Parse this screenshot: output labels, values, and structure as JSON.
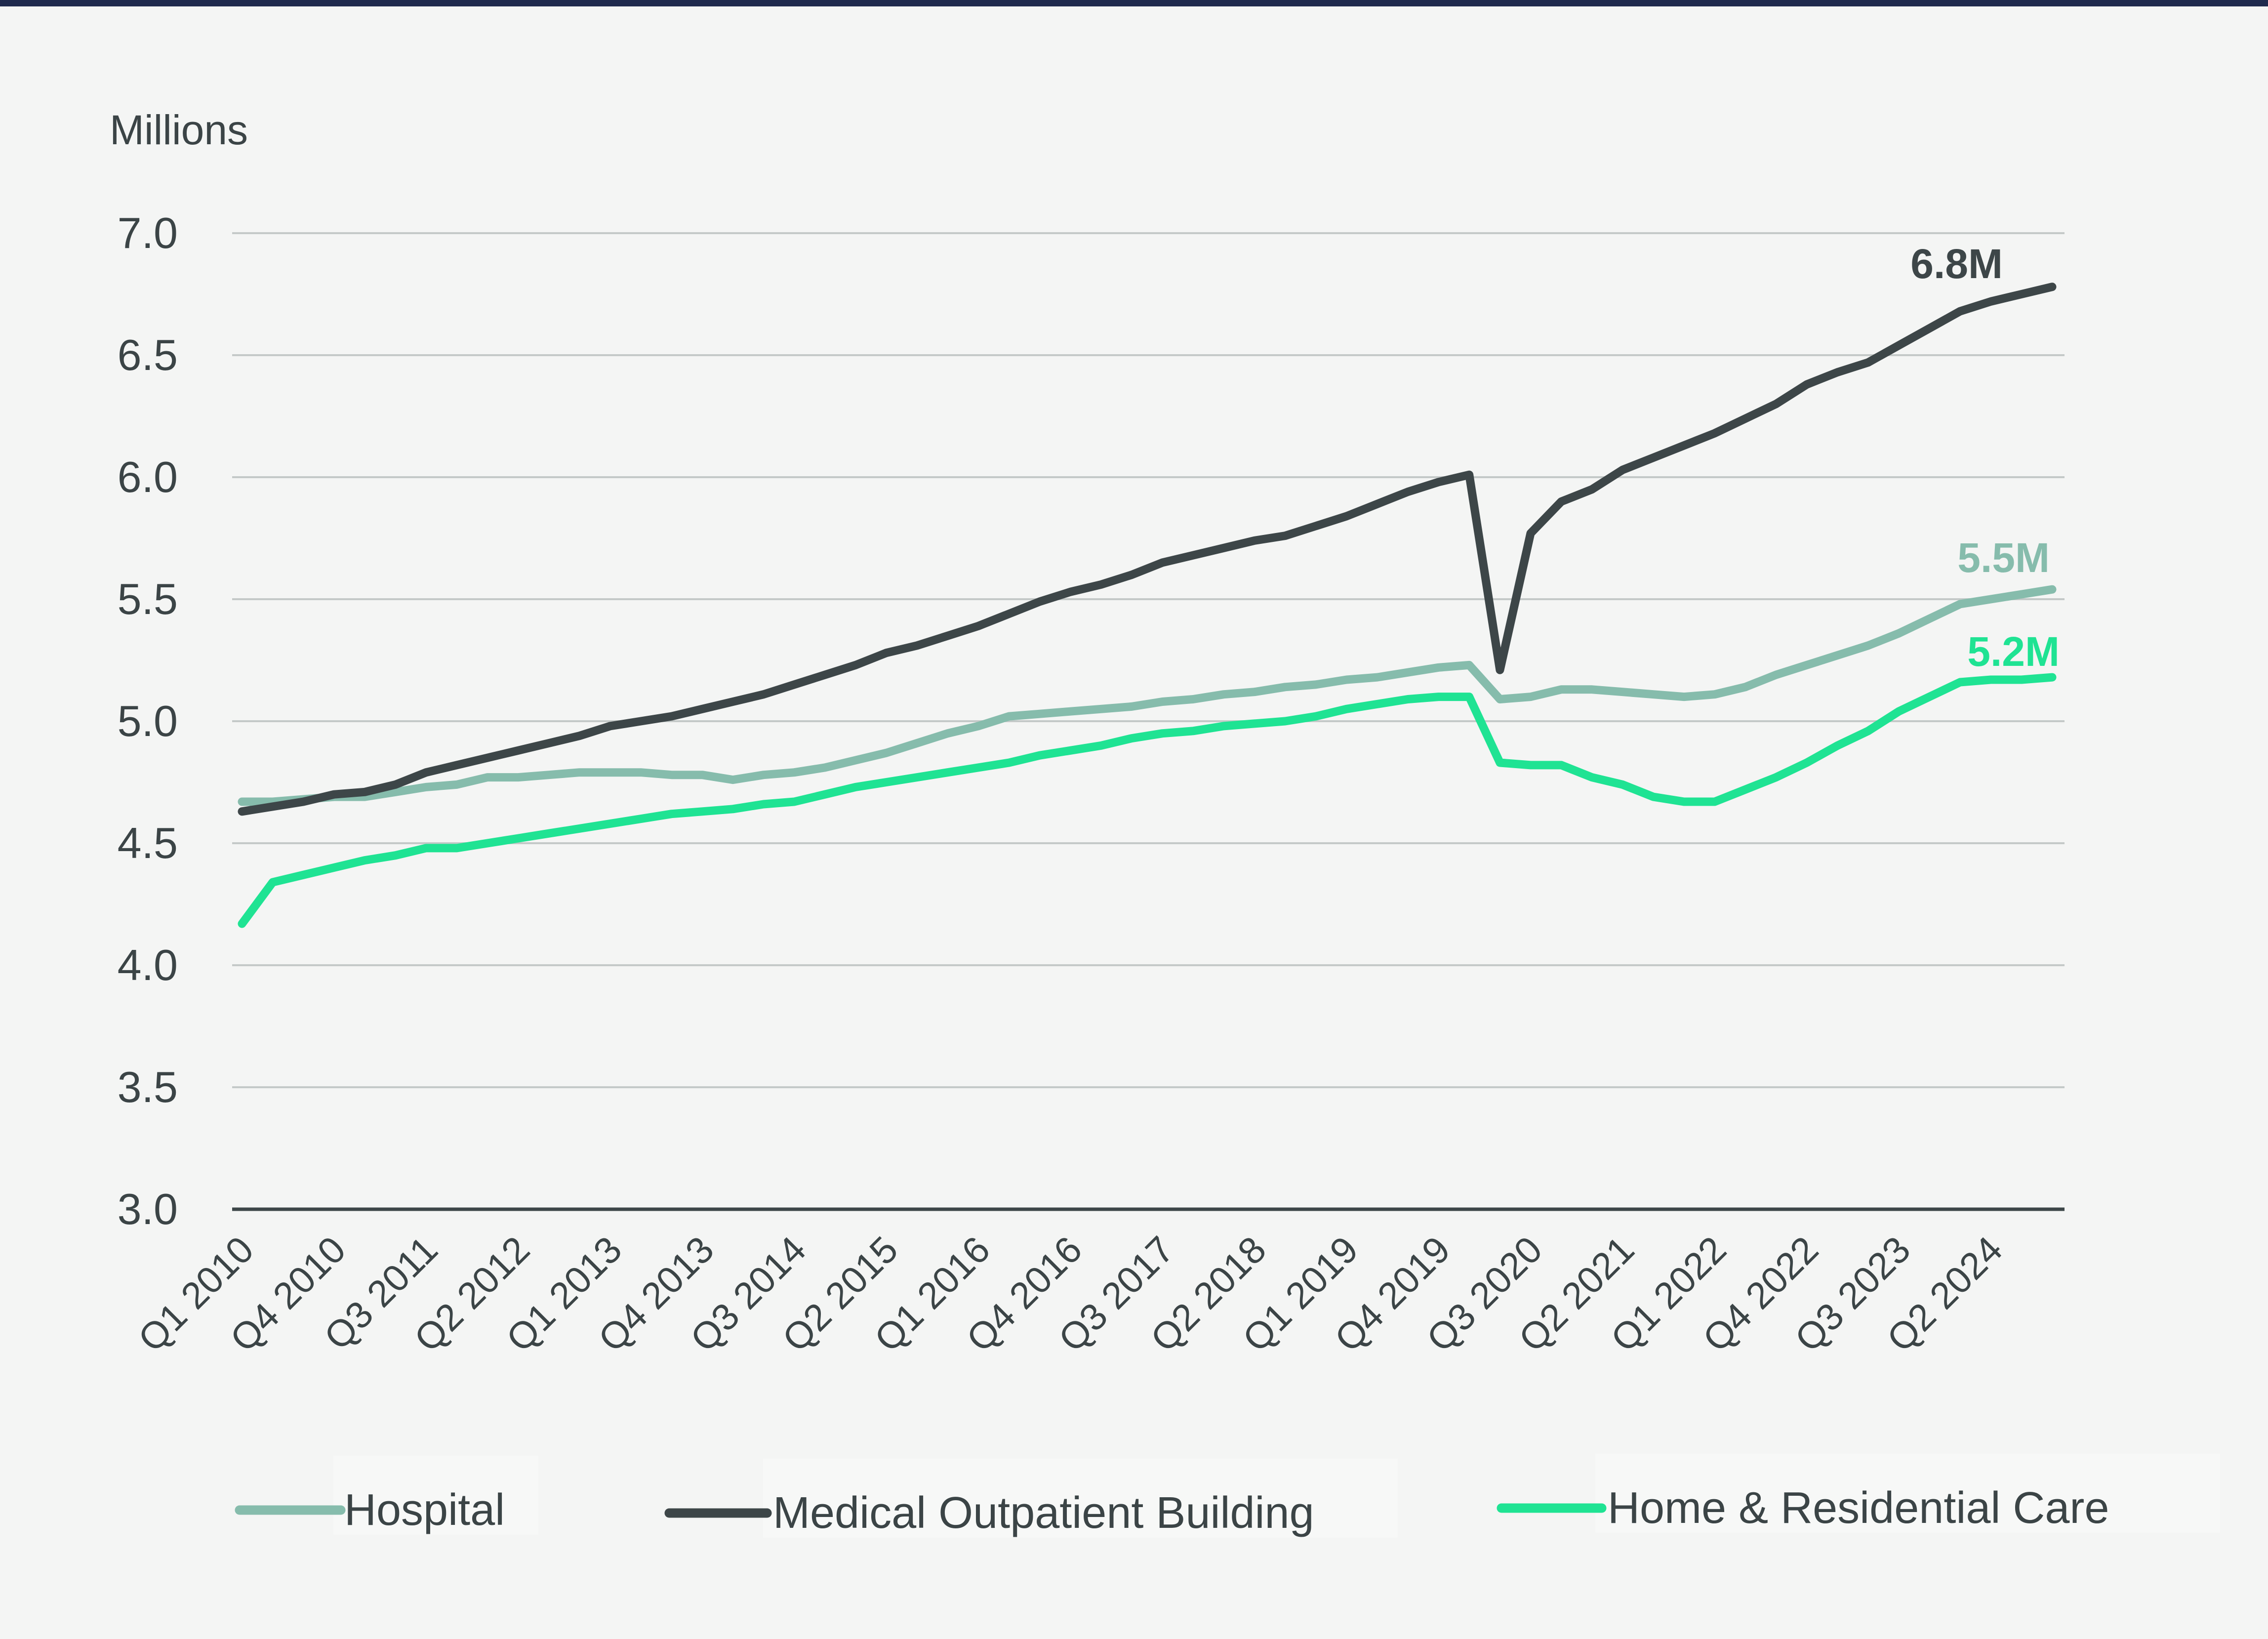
{
  "chart_data": {
    "type": "line",
    "title": "",
    "ylabel": "Millions",
    "xlabel": "",
    "ylim": [
      3.0,
      7.0
    ],
    "yticks": [
      3.0,
      3.5,
      4.0,
      4.5,
      5.0,
      5.5,
      6.0,
      6.5,
      7.0
    ],
    "ytick_labels": [
      "3.0",
      "3.5",
      "4.0",
      "4.5",
      "5.0",
      "5.5",
      "6.0",
      "6.5",
      "7.0"
    ],
    "x_tick_labels": [
      {
        "label": "Q1 2010",
        "index": 0
      },
      {
        "label": "Q4 2010",
        "index": 3
      },
      {
        "label": "Q3 2011",
        "index": 6
      },
      {
        "label": "Q2 2012",
        "index": 9
      },
      {
        "label": "Q1 2013",
        "index": 12
      },
      {
        "label": "Q4 2013",
        "index": 15
      },
      {
        "label": "Q3 2014",
        "index": 18
      },
      {
        "label": "Q2 2015",
        "index": 21
      },
      {
        "label": "Q1 2016",
        "index": 24
      },
      {
        "label": "Q4 2016",
        "index": 27
      },
      {
        "label": "Q3 2017",
        "index": 30
      },
      {
        "label": "Q2 2018",
        "index": 33
      },
      {
        "label": "Q1 2019",
        "index": 36
      },
      {
        "label": "Q4 2019",
        "index": 39
      },
      {
        "label": "Q3 2020",
        "index": 42
      },
      {
        "label": "Q2 2021",
        "index": 45
      },
      {
        "label": "Q1 2022",
        "index": 48
      },
      {
        "label": "Q4 2022",
        "index": 51
      },
      {
        "label": "Q3 2023",
        "index": 54
      },
      {
        "label": "Q2 2024",
        "index": 57
      }
    ],
    "num_points": 60,
    "legend_position": "bottom",
    "series": [
      {
        "name": "Hospital",
        "color": "#86bcac",
        "end_label": "5.5M",
        "values": [
          4.67,
          4.67,
          4.68,
          4.69,
          4.69,
          4.71,
          4.73,
          4.74,
          4.77,
          4.77,
          4.78,
          4.79,
          4.79,
          4.79,
          4.78,
          4.78,
          4.76,
          4.78,
          4.79,
          4.81,
          4.84,
          4.87,
          4.91,
          4.95,
          4.98,
          5.02,
          5.03,
          5.04,
          5.05,
          5.06,
          5.08,
          5.09,
          5.11,
          5.12,
          5.14,
          5.15,
          5.17,
          5.18,
          5.2,
          5.22,
          5.23,
          5.09,
          5.1,
          5.13,
          5.13,
          5.12,
          5.11,
          5.1,
          5.11,
          5.14,
          5.19,
          5.23,
          5.27,
          5.31,
          5.36,
          5.42,
          5.48,
          5.5,
          5.52,
          5.54
        ]
      },
      {
        "name": "Medical Outpatient Building",
        "color": "#3d4648",
        "end_label": "6.8M",
        "values": [
          4.63,
          4.65,
          4.67,
          4.7,
          4.71,
          4.74,
          4.79,
          4.82,
          4.85,
          4.88,
          4.91,
          4.94,
          4.98,
          5.0,
          5.02,
          5.05,
          5.08,
          5.11,
          5.15,
          5.19,
          5.23,
          5.28,
          5.31,
          5.35,
          5.39,
          5.44,
          5.49,
          5.53,
          5.56,
          5.6,
          5.65,
          5.68,
          5.71,
          5.74,
          5.76,
          5.8,
          5.84,
          5.89,
          5.94,
          5.98,
          6.01,
          5.21,
          5.77,
          5.9,
          5.95,
          6.03,
          6.08,
          6.13,
          6.18,
          6.24,
          6.3,
          6.38,
          6.43,
          6.47,
          6.54,
          6.61,
          6.68,
          6.72,
          6.75,
          6.78
        ]
      },
      {
        "name": "Home & Residential Care",
        "color": "#1fe393",
        "end_label": "5.2M",
        "values": [
          4.17,
          4.34,
          4.37,
          4.4,
          4.43,
          4.45,
          4.48,
          4.48,
          4.5,
          4.52,
          4.54,
          4.56,
          4.58,
          4.6,
          4.62,
          4.63,
          4.64,
          4.66,
          4.67,
          4.7,
          4.73,
          4.75,
          4.77,
          4.79,
          4.81,
          4.83,
          4.86,
          4.88,
          4.9,
          4.93,
          4.95,
          4.96,
          4.98,
          4.99,
          5.0,
          5.02,
          5.05,
          5.07,
          5.09,
          5.1,
          5.1,
          4.83,
          4.82,
          4.82,
          4.77,
          4.74,
          4.69,
          4.67,
          4.67,
          4.72,
          4.77,
          4.83,
          4.9,
          4.96,
          5.04,
          5.1,
          5.16,
          5.17,
          5.17,
          5.18
        ]
      }
    ]
  }
}
